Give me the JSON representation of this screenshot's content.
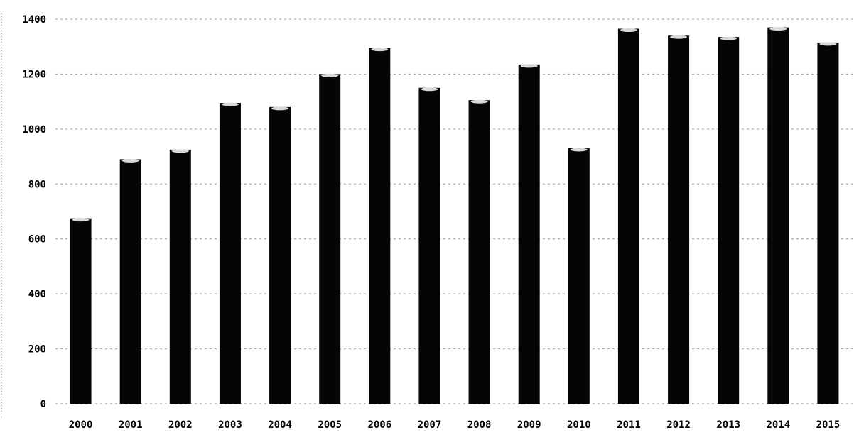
{
  "chart_data": {
    "type": "bar",
    "title": "",
    "xlabel": "",
    "ylabel": "",
    "categories": [
      "2000",
      "2001",
      "2002",
      "2003",
      "2004",
      "2005",
      "2006",
      "2007",
      "2008",
      "2009",
      "2010",
      "2011",
      "2012",
      "2013",
      "2014",
      "2015"
    ],
    "values": [
      675,
      890,
      925,
      1095,
      1080,
      1200,
      1295,
      1150,
      1105,
      1235,
      930,
      1365,
      1340,
      1335,
      1370,
      1315
    ],
    "ylim": [
      0,
      1400
    ],
    "yticks": [
      "0",
      "200",
      "400",
      "600",
      "800",
      "1000",
      "1200",
      "1400"
    ],
    "grid": true,
    "legend": "none",
    "colors": {
      "bar": "#050505",
      "bar_cap": "#d9d9d9",
      "grid": "#9a9a9a"
    }
  }
}
